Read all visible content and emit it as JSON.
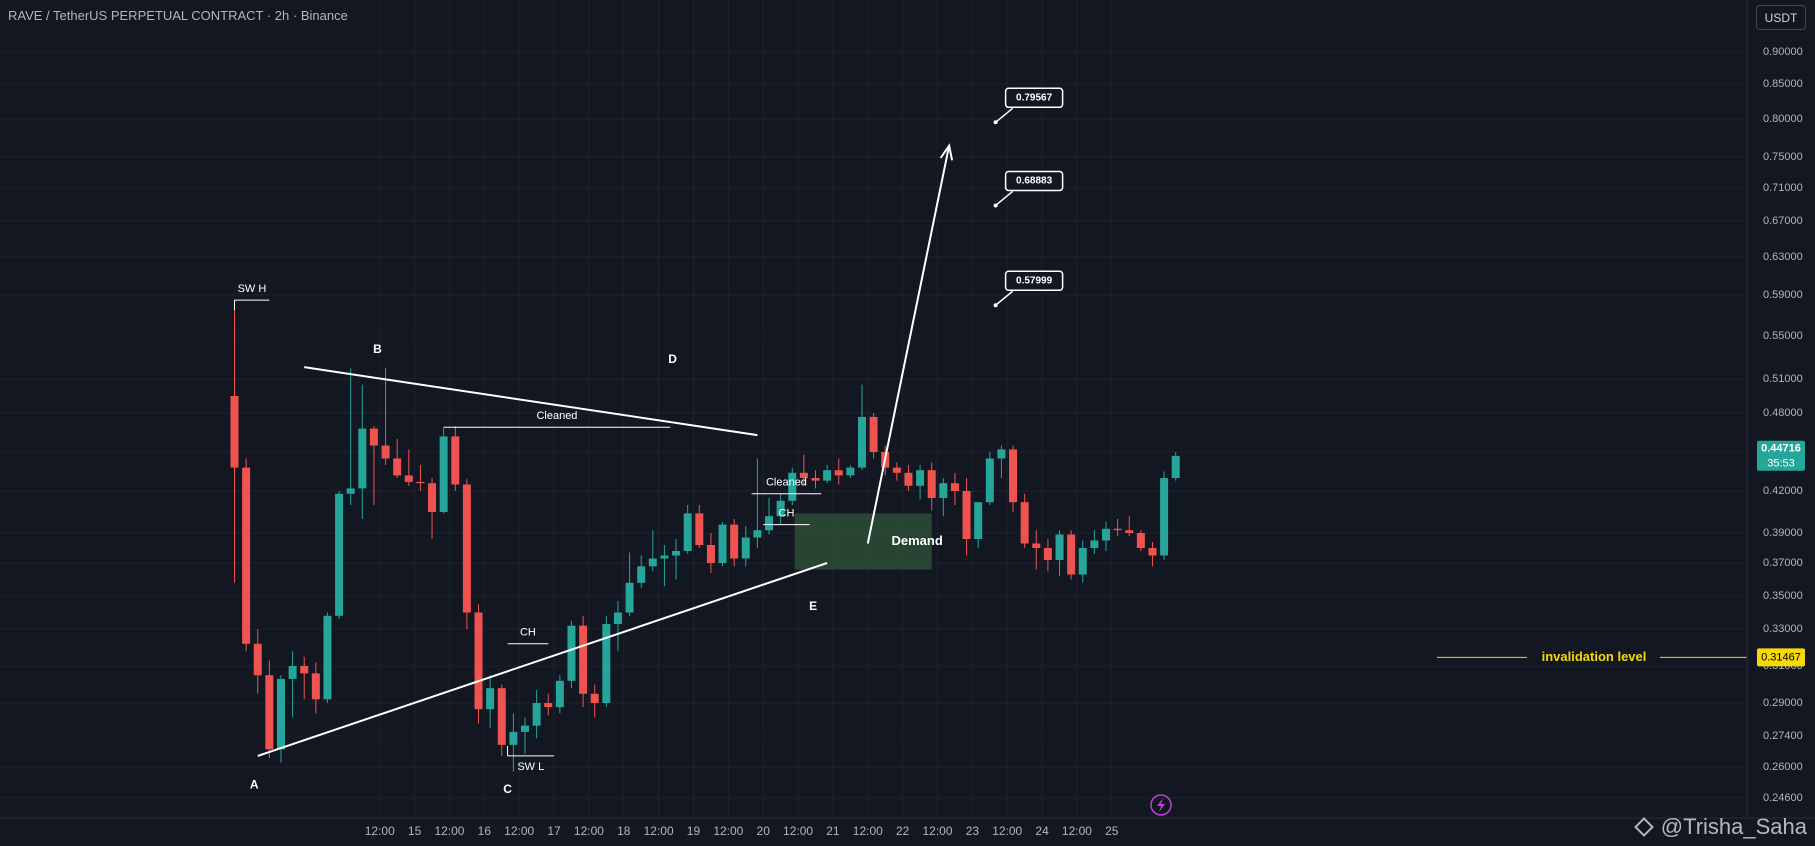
{
  "header": {
    "title": "RAVE / TetherUS PERPETUAL CONTRACT · 2h · Binance",
    "currency_button": "USDT"
  },
  "watermark": "@Trisha_Saha",
  "colors": {
    "background": "#131722",
    "up": "#26a69a",
    "down": "#ef5350",
    "grid": "#1e222d",
    "axis_text": "#b2b5be",
    "annotation": "#ffffff",
    "demand_zone": "#2a4a34",
    "invalidation": "#f5d90a"
  },
  "chart_data": {
    "type": "candlestick",
    "ylim": [
      0.235,
      0.93
    ],
    "y_axis_ticks": [
      0.246,
      0.26,
      0.274,
      0.29,
      0.31,
      0.33,
      0.35,
      0.37,
      0.39,
      0.42,
      0.45,
      0.48,
      0.51,
      0.55,
      0.59,
      0.63,
      0.67,
      0.71,
      0.75,
      0.8,
      0.85,
      0.9
    ],
    "y_axis_labels": [
      "0.24600",
      "0.26000",
      "0.27400",
      "0.29000",
      "0.31000",
      "0.33000",
      "0.35000",
      "0.37000",
      "0.39000",
      "0.42000",
      "0.45000",
      "0.48000",
      "0.51000",
      "0.55000",
      "0.59000",
      "0.63000",
      "0.67000",
      "0.71000",
      "0.75000",
      "0.80000",
      "0.85000",
      "0.90000"
    ],
    "x_axis_labels": [
      {
        "t": 12.5,
        "label": "12:00"
      },
      {
        "t": 15.5,
        "label": "15"
      },
      {
        "t": 18.5,
        "label": "12:00"
      },
      {
        "t": 21.5,
        "label": "16"
      },
      {
        "t": 24.5,
        "label": "12:00"
      },
      {
        "t": 27.5,
        "label": "17"
      },
      {
        "t": 30.5,
        "label": "12:00"
      },
      {
        "t": 33.5,
        "label": "18"
      },
      {
        "t": 36.5,
        "label": "12:00"
      },
      {
        "t": 39.5,
        "label": "19"
      },
      {
        "t": 42.5,
        "label": "12:00"
      },
      {
        "t": 45.5,
        "label": "20"
      },
      {
        "t": 48.5,
        "label": "12:00"
      },
      {
        "t": 51.5,
        "label": "21"
      },
      {
        "t": 54.5,
        "label": "12:00"
      },
      {
        "t": 57.5,
        "label": "22"
      },
      {
        "t": 60.5,
        "label": "12:00"
      },
      {
        "t": 63.5,
        "label": "23"
      },
      {
        "t": 66.5,
        "label": "12:00"
      },
      {
        "t": 69.5,
        "label": "24"
      },
      {
        "t": 72.5,
        "label": "12:00"
      },
      {
        "t": 75.5,
        "label": "25"
      }
    ],
    "candles": [
      [
        0.495,
        0.585,
        0.358,
        0.438
      ],
      [
        0.438,
        0.445,
        0.318,
        0.322
      ],
      [
        0.322,
        0.33,
        0.295,
        0.305
      ],
      [
        0.305,
        0.313,
        0.264,
        0.268
      ],
      [
        0.268,
        0.305,
        0.262,
        0.303
      ],
      [
        0.303,
        0.318,
        0.283,
        0.31
      ],
      [
        0.31,
        0.315,
        0.292,
        0.306
      ],
      [
        0.306,
        0.312,
        0.285,
        0.292
      ],
      [
        0.292,
        0.34,
        0.29,
        0.338
      ],
      [
        0.338,
        0.42,
        0.336,
        0.418
      ],
      [
        0.418,
        0.52,
        0.41,
        0.422
      ],
      [
        0.422,
        0.505,
        0.4,
        0.468
      ],
      [
        0.468,
        0.47,
        0.41,
        0.455
      ],
      [
        0.455,
        0.52,
        0.44,
        0.445
      ],
      [
        0.445,
        0.46,
        0.43,
        0.432
      ],
      [
        0.432,
        0.452,
        0.424,
        0.427
      ],
      [
        0.427,
        0.44,
        0.42,
        0.426
      ],
      [
        0.426,
        0.43,
        0.386,
        0.405
      ],
      [
        0.405,
        0.469,
        0.404,
        0.462
      ],
      [
        0.462,
        0.47,
        0.42,
        0.425
      ],
      [
        0.425,
        0.429,
        0.33,
        0.34
      ],
      [
        0.34,
        0.345,
        0.28,
        0.287
      ],
      [
        0.287,
        0.305,
        0.278,
        0.298
      ],
      [
        0.298,
        0.3,
        0.265,
        0.27
      ],
      [
        0.27,
        0.285,
        0.258,
        0.276
      ],
      [
        0.276,
        0.283,
        0.266,
        0.279
      ],
      [
        0.279,
        0.297,
        0.273,
        0.29
      ],
      [
        0.29,
        0.295,
        0.284,
        0.288
      ],
      [
        0.288,
        0.305,
        0.285,
        0.302
      ],
      [
        0.302,
        0.335,
        0.298,
        0.332
      ],
      [
        0.332,
        0.338,
        0.288,
        0.295
      ],
      [
        0.295,
        0.3,
        0.283,
        0.29
      ],
      [
        0.29,
        0.338,
        0.288,
        0.333
      ],
      [
        0.333,
        0.347,
        0.318,
        0.34
      ],
      [
        0.34,
        0.377,
        0.338,
        0.358
      ],
      [
        0.358,
        0.375,
        0.355,
        0.368
      ],
      [
        0.368,
        0.392,
        0.365,
        0.373
      ],
      [
        0.373,
        0.382,
        0.356,
        0.375
      ],
      [
        0.375,
        0.386,
        0.36,
        0.378
      ],
      [
        0.378,
        0.41,
        0.376,
        0.404
      ],
      [
        0.404,
        0.41,
        0.38,
        0.382
      ],
      [
        0.382,
        0.39,
        0.364,
        0.37
      ],
      [
        0.37,
        0.398,
        0.368,
        0.396
      ],
      [
        0.396,
        0.4,
        0.368,
        0.373
      ],
      [
        0.373,
        0.395,
        0.368,
        0.387
      ],
      [
        0.387,
        0.445,
        0.38,
        0.392
      ],
      [
        0.392,
        0.415,
        0.389,
        0.402
      ],
      [
        0.402,
        0.418,
        0.396,
        0.413
      ],
      [
        0.413,
        0.438,
        0.41,
        0.434
      ],
      [
        0.434,
        0.448,
        0.425,
        0.43
      ],
      [
        0.43,
        0.436,
        0.422,
        0.428
      ],
      [
        0.428,
        0.44,
        0.426,
        0.436
      ],
      [
        0.436,
        0.445,
        0.425,
        0.432
      ],
      [
        0.432,
        0.44,
        0.43,
        0.438
      ],
      [
        0.438,
        0.505,
        0.436,
        0.477
      ],
      [
        0.477,
        0.48,
        0.445,
        0.45
      ],
      [
        0.45,
        0.455,
        0.432,
        0.438
      ],
      [
        0.438,
        0.442,
        0.428,
        0.434
      ],
      [
        0.434,
        0.44,
        0.42,
        0.424
      ],
      [
        0.424,
        0.44,
        0.414,
        0.436
      ],
      [
        0.436,
        0.442,
        0.406,
        0.415
      ],
      [
        0.415,
        0.43,
        0.402,
        0.426
      ],
      [
        0.426,
        0.434,
        0.41,
        0.42
      ],
      [
        0.42,
        0.43,
        0.375,
        0.386
      ],
      [
        0.386,
        0.412,
        0.38,
        0.412
      ],
      [
        0.412,
        0.45,
        0.41,
        0.445
      ],
      [
        0.445,
        0.455,
        0.43,
        0.452
      ],
      [
        0.452,
        0.455,
        0.405,
        0.412
      ],
      [
        0.412,
        0.418,
        0.38,
        0.383
      ],
      [
        0.383,
        0.392,
        0.366,
        0.38
      ],
      [
        0.38,
        0.386,
        0.365,
        0.372
      ],
      [
        0.372,
        0.392,
        0.362,
        0.389
      ],
      [
        0.389,
        0.392,
        0.36,
        0.363
      ],
      [
        0.363,
        0.385,
        0.358,
        0.38
      ],
      [
        0.38,
        0.392,
        0.376,
        0.385
      ],
      [
        0.385,
        0.398,
        0.378,
        0.393
      ],
      [
        0.393,
        0.4,
        0.388,
        0.392
      ],
      [
        0.392,
        0.402,
        0.388,
        0.39
      ],
      [
        0.39,
        0.392,
        0.378,
        0.38
      ],
      [
        0.38,
        0.384,
        0.368,
        0.375
      ],
      [
        0.375,
        0.435,
        0.372,
        0.43
      ],
      [
        0.43,
        0.45,
        0.428,
        0.447
      ]
    ],
    "price_label": {
      "value": 0.44716,
      "text": "0.44716",
      "countdown": "35:53"
    },
    "invalidation": {
      "value": 0.31467,
      "text": "0.31467",
      "label": "invalidation level"
    },
    "demand_zone": {
      "label": "Demand",
      "t_start": 48.2,
      "t_end": 60.0,
      "y_low": 0.366,
      "y_high": 0.404
    },
    "targets": [
      {
        "label": "0.79567",
        "t": 65.5,
        "value": 0.79567
      },
      {
        "label": "0.68883",
        "t": 65.5,
        "value": 0.68883
      },
      {
        "label": "0.57999",
        "t": 65.5,
        "value": 0.57999
      }
    ],
    "points": [
      {
        "label": "A",
        "t": 1.7,
        "value": 0.258
      },
      {
        "label": "B",
        "t": 12.3,
        "value": 0.524
      },
      {
        "label": "C",
        "t": 23.5,
        "value": 0.256
      },
      {
        "label": "D",
        "t": 37.7,
        "value": 0.515
      },
      {
        "label": "E",
        "t": 49.8,
        "value": 0.352
      }
    ],
    "structure_labels": [
      {
        "label": "SW H",
        "t1": 0.0,
        "t2": 3.0,
        "value": 0.585
      },
      {
        "label": "SW L",
        "t1": 23.5,
        "t2": 27.5,
        "value": 0.265
      },
      {
        "label": "Cleaned",
        "t1": 18.0,
        "t2": 37.5,
        "value": 0.469
      },
      {
        "label": "CH",
        "t1": 23.5,
        "t2": 27.0,
        "value": 0.322
      },
      {
        "label": "Cleaned",
        "t1": 44.5,
        "t2": 50.5,
        "value": 0.418
      },
      {
        "label": "CH",
        "t1": 45.5,
        "t2": 49.5,
        "value": 0.396
      }
    ],
    "trendlines": [
      {
        "t1": 2.0,
        "v1": 0.265,
        "t2": 51.0,
        "v2": 0.37
      },
      {
        "t1": 6.0,
        "v1": 0.521,
        "t2": 45.0,
        "v2": 0.463
      }
    ],
    "projection_arrow": {
      "t1": 54.5,
      "v1": 0.383,
      "t2": 61.5,
      "v2": 0.765
    }
  }
}
